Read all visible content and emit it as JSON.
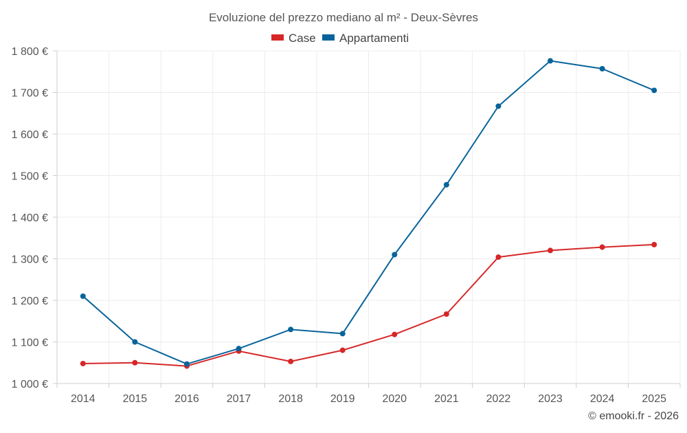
{
  "chart_data": {
    "type": "line",
    "title": "Evoluzione del prezzo mediano al m² - Deux-Sèvres",
    "xlabel": "",
    "ylabel": "",
    "categories": [
      "2014",
      "2015",
      "2016",
      "2017",
      "2018",
      "2019",
      "2020",
      "2021",
      "2022",
      "2023",
      "2024",
      "2025"
    ],
    "y_ticks": [
      1000,
      1100,
      1200,
      1300,
      1400,
      1500,
      1600,
      1700,
      1800
    ],
    "y_tick_labels": [
      "1 000 €",
      "1 100 €",
      "1 200 €",
      "1 300 €",
      "1 400 €",
      "1 500 €",
      "1 600 €",
      "1 700 €",
      "1 800 €"
    ],
    "ylim": [
      1000,
      1800
    ],
    "grid": true,
    "legend_position": "top-center",
    "series": [
      {
        "name": "Case",
        "color": "#d62728",
        "values": [
          1048,
          1050,
          1042,
          1078,
          1053,
          1080,
          1118,
          1167,
          1304,
          1320,
          1328,
          1334
        ]
      },
      {
        "name": "Appartamenti",
        "color": "#08649b",
        "values": [
          1210,
          1100,
          1047,
          1084,
          1130,
          1120,
          1310,
          1478,
          1667,
          1776,
          1757,
          1705
        ]
      }
    ]
  },
  "credit": "© emooki.fr - 2026"
}
